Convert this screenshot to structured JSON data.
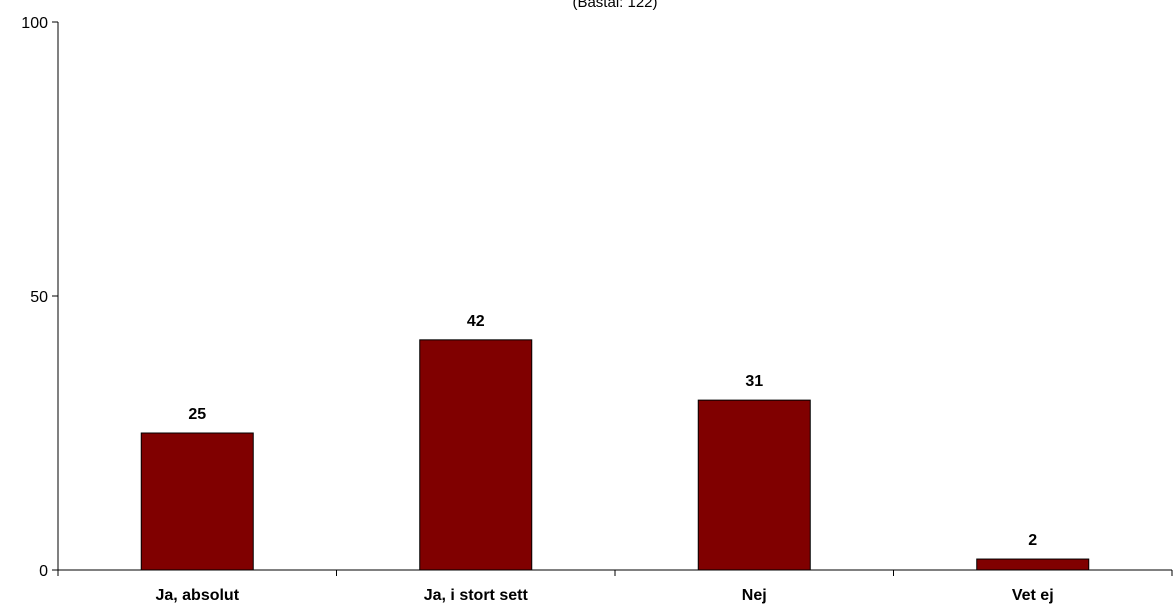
{
  "chart_data": {
    "type": "bar",
    "subtitle": "(Bastal: 122)",
    "categories": [
      "Ja, absolut",
      "Ja, i stort sett",
      "Nej",
      "Vet ej"
    ],
    "values": [
      25,
      42,
      31,
      2
    ],
    "data_labels": [
      "25",
      "42",
      "31",
      "2"
    ],
    "ylim": [
      0,
      100
    ],
    "yticks": [
      0,
      50,
      100
    ],
    "ytick_labels": [
      "0",
      "50",
      "100"
    ],
    "grid": false,
    "legend": "none",
    "bar_color": "#800000",
    "bar_border_color": "#000000"
  }
}
